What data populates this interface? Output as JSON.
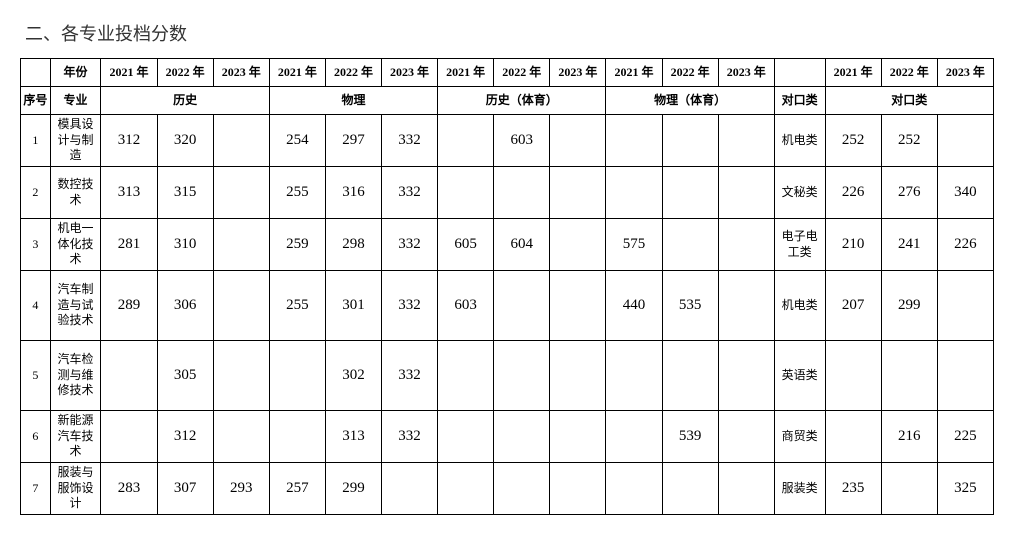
{
  "title": "二、各专业投档分数",
  "table": {
    "headers": {
      "year": "年份",
      "no": "序号",
      "major": "专业",
      "years": [
        "2021 年",
        "2022 年",
        "2023 年"
      ],
      "groups": [
        "历史",
        "物理",
        "历史（体育）",
        "物理（体育）",
        "对口类",
        "对口类"
      ]
    },
    "columns": {
      "background_color": "#ffffff",
      "border_color": "#000000",
      "text_color": "#000000",
      "header_fontsize": 12,
      "data_fontsize": 15
    },
    "rows": [
      {
        "no": "1",
        "major": "模具设计与制造",
        "history": [
          "312",
          "320",
          ""
        ],
        "physics": [
          "254",
          "297",
          "332"
        ],
        "history_pe": [
          "",
          "603",
          ""
        ],
        "physics_pe": [
          "",
          "",
          ""
        ],
        "category": "机电类",
        "duikou": [
          "252",
          "252",
          ""
        ],
        "tall": false
      },
      {
        "no": "2",
        "major": "数控技术",
        "history": [
          "313",
          "315",
          ""
        ],
        "physics": [
          "255",
          "316",
          "332"
        ],
        "history_pe": [
          "",
          "",
          ""
        ],
        "physics_pe": [
          "",
          "",
          ""
        ],
        "category": "文秘类",
        "duikou": [
          "226",
          "276",
          "340"
        ],
        "tall": false
      },
      {
        "no": "3",
        "major": "机电一体化技术",
        "history": [
          "281",
          "310",
          ""
        ],
        "physics": [
          "259",
          "298",
          "332"
        ],
        "history_pe": [
          "605",
          "604",
          ""
        ],
        "physics_pe": [
          "575",
          "",
          ""
        ],
        "category": "电子电工类",
        "duikou": [
          "210",
          "241",
          "226"
        ],
        "tall": false
      },
      {
        "no": "4",
        "major": "汽车制造与试验技术",
        "history": [
          "289",
          "306",
          ""
        ],
        "physics": [
          "255",
          "301",
          "332"
        ],
        "history_pe": [
          "603",
          "",
          ""
        ],
        "physics_pe": [
          "440",
          "535",
          ""
        ],
        "category": "机电类",
        "duikou": [
          "207",
          "299",
          ""
        ],
        "tall": true
      },
      {
        "no": "5",
        "major": "汽车检测与维修技术",
        "history": [
          "",
          "305",
          ""
        ],
        "physics": [
          "",
          "302",
          "332"
        ],
        "history_pe": [
          "",
          "",
          ""
        ],
        "physics_pe": [
          "",
          "",
          ""
        ],
        "category": "英语类",
        "duikou": [
          "",
          "",
          ""
        ],
        "tall": true
      },
      {
        "no": "6",
        "major": "新能源汽车技术",
        "history": [
          "",
          "312",
          ""
        ],
        "physics": [
          "",
          "313",
          "332"
        ],
        "history_pe": [
          "",
          "",
          ""
        ],
        "physics_pe": [
          "",
          "539",
          ""
        ],
        "category": "商贸类",
        "duikou": [
          "",
          "216",
          "225"
        ],
        "tall": false
      },
      {
        "no": "7",
        "major": "服装与服饰设计",
        "history": [
          "283",
          "307",
          "293"
        ],
        "physics": [
          "257",
          "299",
          ""
        ],
        "history_pe": [
          "",
          "",
          ""
        ],
        "physics_pe": [
          "",
          "",
          ""
        ],
        "category": "服装类",
        "duikou": [
          "235",
          "",
          "325"
        ],
        "tall": false
      }
    ]
  }
}
